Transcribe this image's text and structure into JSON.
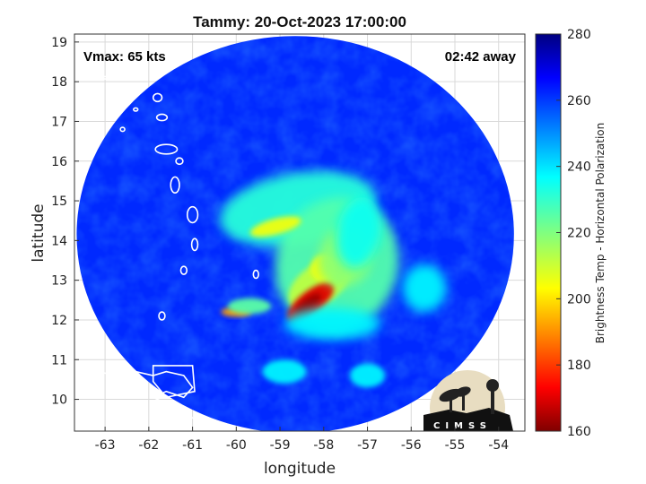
{
  "chart_data": {
    "type": "heatmap",
    "title": "Tammy: 20-Oct-2023 17:00:00",
    "xlabel": "longitude",
    "ylabel": "latitude",
    "xlim": [
      -63.7,
      -53.4
    ],
    "ylim": [
      9.2,
      19.2
    ],
    "xticks": [
      -63,
      -62,
      -61,
      -60,
      -59,
      -58,
      -57,
      -56,
      -55,
      -54
    ],
    "yticks": [
      10,
      11,
      12,
      13,
      14,
      15,
      16,
      17,
      18,
      19
    ],
    "grid": true,
    "annotations": {
      "vmax": "Vmax: 65 kts",
      "offset": "02:42 away"
    },
    "colorbar": {
      "label": "Brightness Temp - Horizontal Polarization",
      "range": [
        160,
        280
      ],
      "ticks": [
        160,
        180,
        200,
        220,
        240,
        260,
        280
      ],
      "colormap": "jet"
    },
    "swath": {
      "center": [
        -58.65,
        14.15
      ],
      "radius_deg": 5.0
    },
    "background_tb": 262,
    "features": [
      {
        "name": "inner core",
        "lon": -58.3,
        "lat": 12.45,
        "min_tb": 165
      },
      {
        "name": "rainband north",
        "lon": -59.0,
        "lat": 14.35,
        "min_tb": 205
      },
      {
        "name": "rainband west",
        "lon": -60.0,
        "lat": 12.2,
        "min_tb": 190
      },
      {
        "name": "eastern band",
        "lon": -57.5,
        "lat": 13.6,
        "min_tb": 215
      }
    ],
    "logo": "CIMSS"
  },
  "colors": {
    "plot_border": "#333333",
    "grid": "#d9d9d9",
    "land_outline": "#ffffff"
  }
}
